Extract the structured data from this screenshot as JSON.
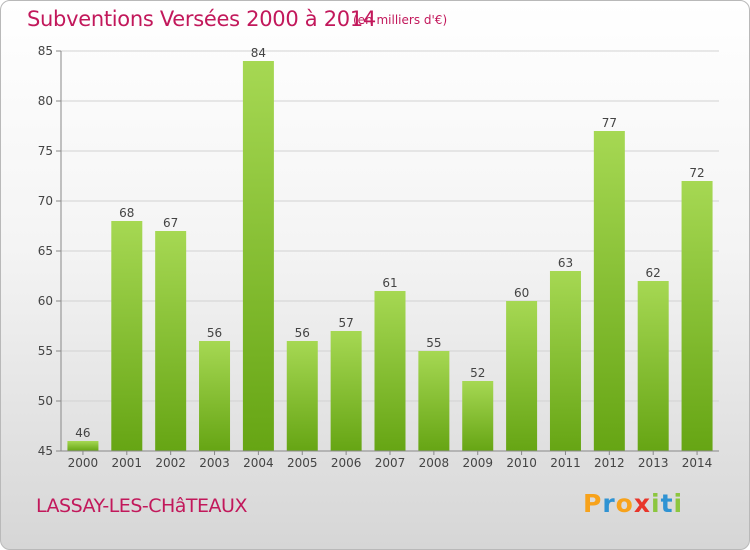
{
  "header": {
    "title": "Subventions Versées 2000 à 2014",
    "subtitle": "(en milliers d'€)"
  },
  "footer": {
    "place": "LASSAY-LES-CHâTEAUX",
    "logo_letters": [
      "P",
      "r",
      "o",
      "x",
      "i",
      "t",
      "i"
    ],
    "logo_colors": [
      "#f7a21b",
      "#2f93d3",
      "#f7a21b",
      "#e8352a",
      "#8cc63f",
      "#2f93d3",
      "#8cc63f"
    ]
  },
  "colors": {
    "bar_light": "#a6d853",
    "bar_dark": "#66a514",
    "grid": "#d2d2d2",
    "axis": "#888888",
    "text": "#444444"
  },
  "chart_data": {
    "type": "bar",
    "title": "Subventions Versées 2000 à 2014",
    "subtitle": "(en milliers d'€)",
    "categories": [
      "2000",
      "2001",
      "2002",
      "2003",
      "2004",
      "2005",
      "2006",
      "2007",
      "2008",
      "2009",
      "2010",
      "2011",
      "2012",
      "2013",
      "2014"
    ],
    "values": [
      46,
      68,
      67,
      56,
      84,
      56,
      57,
      61,
      55,
      52,
      60,
      63,
      77,
      62,
      72
    ],
    "ylim": [
      45,
      85
    ],
    "yticks": [
      45,
      50,
      55,
      60,
      65,
      70,
      75,
      80,
      85
    ],
    "grid": true
  }
}
